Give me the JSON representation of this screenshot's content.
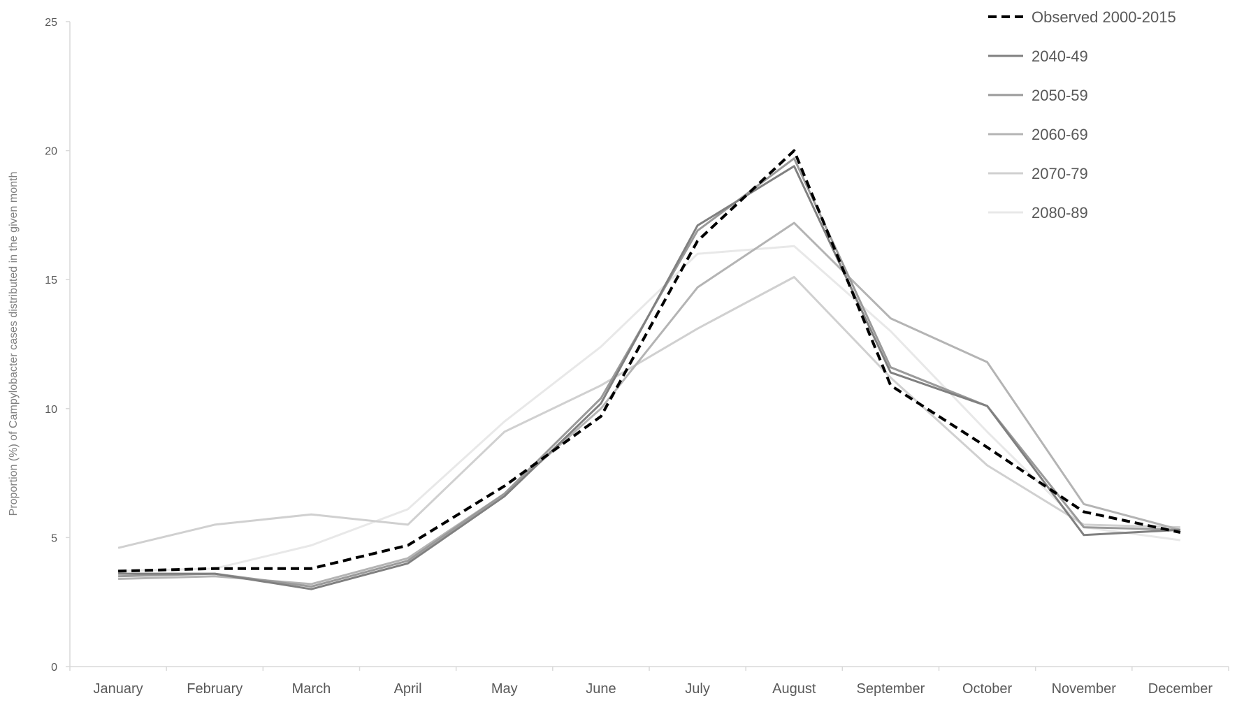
{
  "chart_data": {
    "type": "line",
    "title": "",
    "xlabel": "",
    "ylabel": "Proportion (%) of Campylobacter cases distributed in the given month",
    "ylim": [
      0,
      25
    ],
    "yticks": [
      0,
      5,
      10,
      15,
      20,
      25
    ],
    "grid": false,
    "legend_position": "top-right",
    "categories": [
      "January",
      "February",
      "March",
      "April",
      "May",
      "June",
      "July",
      "August",
      "September",
      "October",
      "November",
      "December"
    ],
    "series": [
      {
        "name": "Observed 2000-2015",
        "color": "#000000",
        "dashed": true,
        "values": [
          3.7,
          3.8,
          3.8,
          4.7,
          7.0,
          9.7,
          16.5,
          20.0,
          10.9,
          8.5,
          6.0,
          5.2
        ]
      },
      {
        "name": "2040-49",
        "color": "#808080",
        "dashed": false,
        "values": [
          3.6,
          3.6,
          3.0,
          4.0,
          6.6,
          10.2,
          17.1,
          19.4,
          11.4,
          10.1,
          5.1,
          5.3
        ]
      },
      {
        "name": "2050-59",
        "color": "#9a9a9a",
        "dashed": false,
        "values": [
          3.5,
          3.6,
          3.1,
          4.1,
          6.7,
          10.4,
          16.9,
          19.7,
          11.6,
          10.1,
          5.4,
          5.3
        ]
      },
      {
        "name": "2060-69",
        "color": "#b4b4b4",
        "dashed": false,
        "values": [
          3.4,
          3.5,
          3.2,
          4.2,
          6.7,
          10.0,
          14.7,
          17.2,
          13.5,
          11.8,
          6.3,
          5.3
        ]
      },
      {
        "name": "2070-79",
        "color": "#d0d0d0",
        "dashed": false,
        "values": [
          4.6,
          5.5,
          5.9,
          5.5,
          9.1,
          10.9,
          13.1,
          15.1,
          11.2,
          7.8,
          5.5,
          5.4
        ]
      },
      {
        "name": "2080-89",
        "color": "#e8e8e8",
        "dashed": false,
        "values": [
          3.7,
          3.8,
          4.7,
          6.1,
          9.5,
          12.4,
          16.0,
          16.3,
          13.0,
          9.1,
          5.4,
          4.9
        ]
      }
    ]
  }
}
